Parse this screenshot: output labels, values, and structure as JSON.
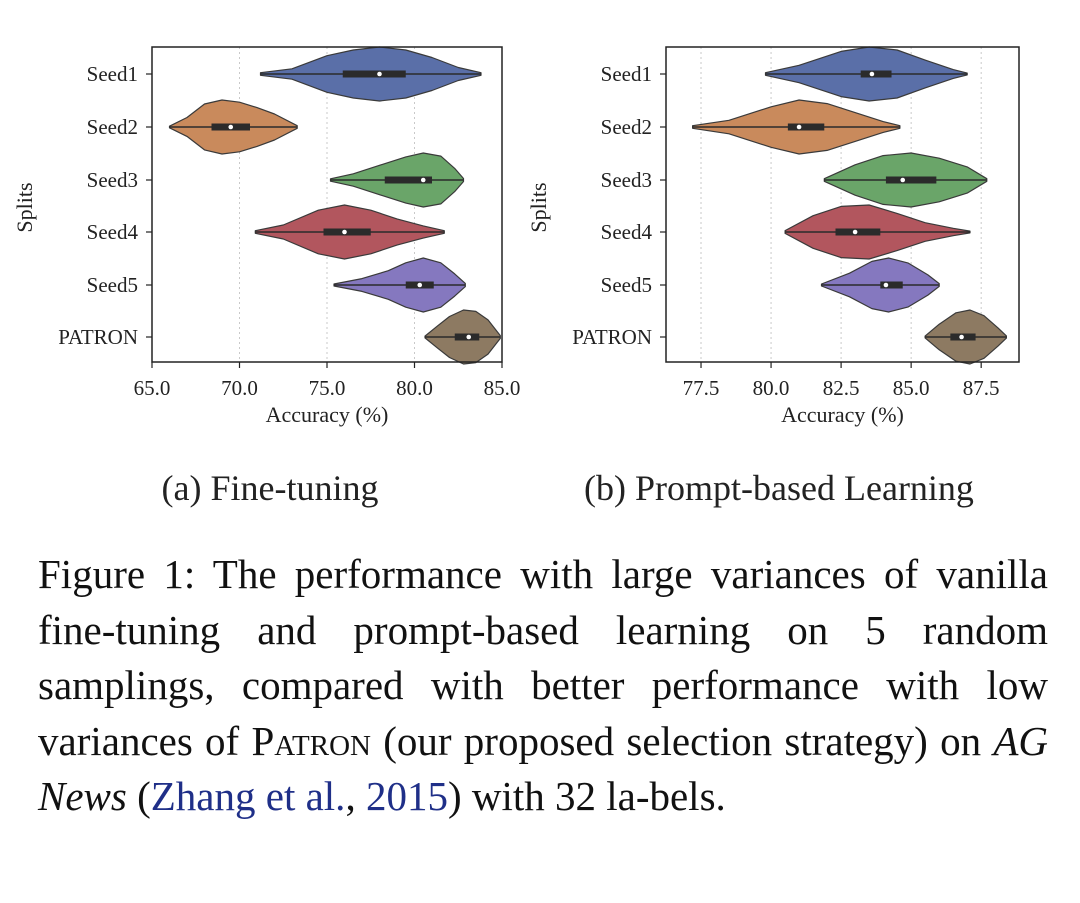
{
  "chart_data": [
    {
      "type": "violin",
      "subcaption": "(a) Fine-tuning",
      "xlabel": "Accuracy (%)",
      "ylabel": "Splits",
      "xlim": [
        65.0,
        85.0
      ],
      "xticks": [
        "65.0",
        "70.0",
        "75.0",
        "80.0",
        "85.0"
      ],
      "grid": "vertical dotted",
      "categories": [
        "Seed1",
        "Seed2",
        "Seed3",
        "Seed4",
        "Seed5",
        "PATRON"
      ],
      "series": [
        {
          "name": "Seed1",
          "color": "#5a6fa8",
          "min": 71.2,
          "q1": 75.9,
          "median": 78.0,
          "q3": 79.5,
          "max": 83.8,
          "density": [
            [
              71.2,
              0.03
            ],
            [
              73,
              0.12
            ],
            [
              75,
              0.42
            ],
            [
              76.5,
              0.55
            ],
            [
              78,
              0.62
            ],
            [
              79.5,
              0.55
            ],
            [
              81,
              0.38
            ],
            [
              82.5,
              0.15
            ],
            [
              83.8,
              0.03
            ]
          ]
        },
        {
          "name": "Seed2",
          "color": "#c98a5c",
          "min": 66.0,
          "q1": 68.4,
          "median": 69.5,
          "q3": 70.6,
          "max": 73.3,
          "density": [
            [
              66,
              0.03
            ],
            [
              67,
              0.35
            ],
            [
              68,
              0.85
            ],
            [
              69,
              1.0
            ],
            [
              70,
              0.92
            ],
            [
              71,
              0.72
            ],
            [
              72,
              0.48
            ],
            [
              73.3,
              0.05
            ]
          ]
        },
        {
          "name": "Seed3",
          "color": "#6aa569",
          "min": 75.2,
          "q1": 78.3,
          "median": 80.5,
          "q3": 81.0,
          "max": 82.8,
          "density": [
            [
              75.2,
              0.03
            ],
            [
              76.5,
              0.16
            ],
            [
              78,
              0.38
            ],
            [
              79.5,
              0.6
            ],
            [
              80.5,
              0.7
            ],
            [
              81.5,
              0.62
            ],
            [
              82.3,
              0.3
            ],
            [
              82.8,
              0.04
            ]
          ]
        },
        {
          "name": "Seed4",
          "color": "#b2565e",
          "min": 70.9,
          "q1": 74.8,
          "median": 76.0,
          "q3": 77.5,
          "max": 81.7,
          "density": [
            [
              70.9,
              0.03
            ],
            [
              72.5,
              0.16
            ],
            [
              74.5,
              0.5
            ],
            [
              76,
              0.62
            ],
            [
              77.5,
              0.5
            ],
            [
              79,
              0.3
            ],
            [
              80.5,
              0.14
            ],
            [
              81.7,
              0.03
            ]
          ]
        },
        {
          "name": "Seed5",
          "color": "#8578bf",
          "min": 75.4,
          "q1": 79.5,
          "median": 80.3,
          "q3": 81.1,
          "max": 82.9,
          "density": [
            [
              75.4,
              0.03
            ],
            [
              77,
              0.2
            ],
            [
              78.5,
              0.45
            ],
            [
              79.5,
              0.7
            ],
            [
              80.5,
              0.85
            ],
            [
              81.5,
              0.7
            ],
            [
              82.3,
              0.35
            ],
            [
              82.9,
              0.05
            ]
          ]
        },
        {
          "name": "PATRON",
          "color": "#8d7a62",
          "min": 80.6,
          "q1": 82.3,
          "median": 83.1,
          "q3": 83.7,
          "max": 84.9,
          "density": [
            [
              80.6,
              0.03
            ],
            [
              81.3,
              0.38
            ],
            [
              82,
              0.72
            ],
            [
              82.8,
              0.95
            ],
            [
              83.5,
              0.9
            ],
            [
              84.2,
              0.6
            ],
            [
              84.9,
              0.05
            ]
          ]
        }
      ]
    },
    {
      "type": "violin",
      "subcaption": "(b) Prompt-based Learning",
      "xlabel": "Accuracy (%)",
      "ylabel": "Splits",
      "xlim": [
        76.25,
        88.85
      ],
      "xticks": [
        "77.5",
        "80.0",
        "82.5",
        "85.0",
        "87.5"
      ],
      "grid": "vertical dotted",
      "categories": [
        "Seed1",
        "Seed2",
        "Seed3",
        "Seed4",
        "Seed5",
        "PATRON"
      ],
      "series": [
        {
          "name": "Seed1",
          "color": "#5a6fa8",
          "min": 79.8,
          "q1": 83.2,
          "median": 83.6,
          "q3": 84.3,
          "max": 87.0,
          "density": [
            [
              79.8,
              0.03
            ],
            [
              81,
              0.2
            ],
            [
              82.5,
              0.52
            ],
            [
              83.5,
              0.62
            ],
            [
              84.5,
              0.55
            ],
            [
              85.5,
              0.32
            ],
            [
              86.5,
              0.1
            ],
            [
              87,
              0.02
            ]
          ]
        },
        {
          "name": "Seed2",
          "color": "#c98a5c",
          "min": 77.2,
          "q1": 80.6,
          "median": 81.0,
          "q3": 81.9,
          "max": 84.6,
          "density": [
            [
              77.2,
              0.03
            ],
            [
              78.5,
              0.15
            ],
            [
              80,
              0.45
            ],
            [
              81,
              0.6
            ],
            [
              82,
              0.52
            ],
            [
              83,
              0.32
            ],
            [
              84,
              0.12
            ],
            [
              84.6,
              0.03
            ]
          ]
        },
        {
          "name": "Seed3",
          "color": "#6aa569",
          "min": 81.9,
          "q1": 84.1,
          "median": 84.7,
          "q3": 85.9,
          "max": 87.7,
          "density": [
            [
              81.9,
              0.03
            ],
            [
              83,
              0.35
            ],
            [
              84,
              0.56
            ],
            [
              85,
              0.62
            ],
            [
              86,
              0.5
            ],
            [
              87,
              0.3
            ],
            [
              87.7,
              0.03
            ]
          ]
        },
        {
          "name": "Seed4",
          "color": "#b2565e",
          "min": 80.5,
          "q1": 82.3,
          "median": 83.0,
          "q3": 83.9,
          "max": 87.1,
          "density": [
            [
              80.5,
              0.03
            ],
            [
              81.5,
              0.35
            ],
            [
              82.5,
              0.55
            ],
            [
              83.5,
              0.58
            ],
            [
              84.5,
              0.4
            ],
            [
              85.5,
              0.2
            ],
            [
              86.5,
              0.08
            ],
            [
              87.1,
              0.02
            ]
          ]
        },
        {
          "name": "Seed5",
          "color": "#8578bf",
          "min": 81.8,
          "q1": 83.9,
          "median": 84.1,
          "q3": 84.7,
          "max": 86.0,
          "density": [
            [
              81.8,
              0.03
            ],
            [
              82.8,
              0.35
            ],
            [
              83.6,
              0.7
            ],
            [
              84.2,
              0.8
            ],
            [
              84.9,
              0.65
            ],
            [
              85.6,
              0.3
            ],
            [
              86,
              0.04
            ]
          ]
        },
        {
          "name": "PATRON",
          "color": "#8d7a62",
          "min": 85.5,
          "q1": 86.4,
          "median": 86.8,
          "q3": 87.3,
          "max": 88.4,
          "density": [
            [
              85.5,
              0.03
            ],
            [
              86,
              0.45
            ],
            [
              86.6,
              0.85
            ],
            [
              87.1,
              0.95
            ],
            [
              87.6,
              0.75
            ],
            [
              88.1,
              0.32
            ],
            [
              88.4,
              0.04
            ]
          ]
        }
      ]
    }
  ],
  "caption": {
    "lead": "Figure 1:  The performance with large variances of vanilla fine-tuning and prompt-based learning on 5 random samplings, compared with better performance with low variances of ",
    "method": "Patron",
    "mid": " (our proposed selection strategy) on ",
    "dataset": "AG News",
    "paren_open": " (",
    "cite_author": "Zhang et al.",
    "cite_sep": ", ",
    "cite_year": "2015",
    "tail": ") with 32 la-bels."
  }
}
